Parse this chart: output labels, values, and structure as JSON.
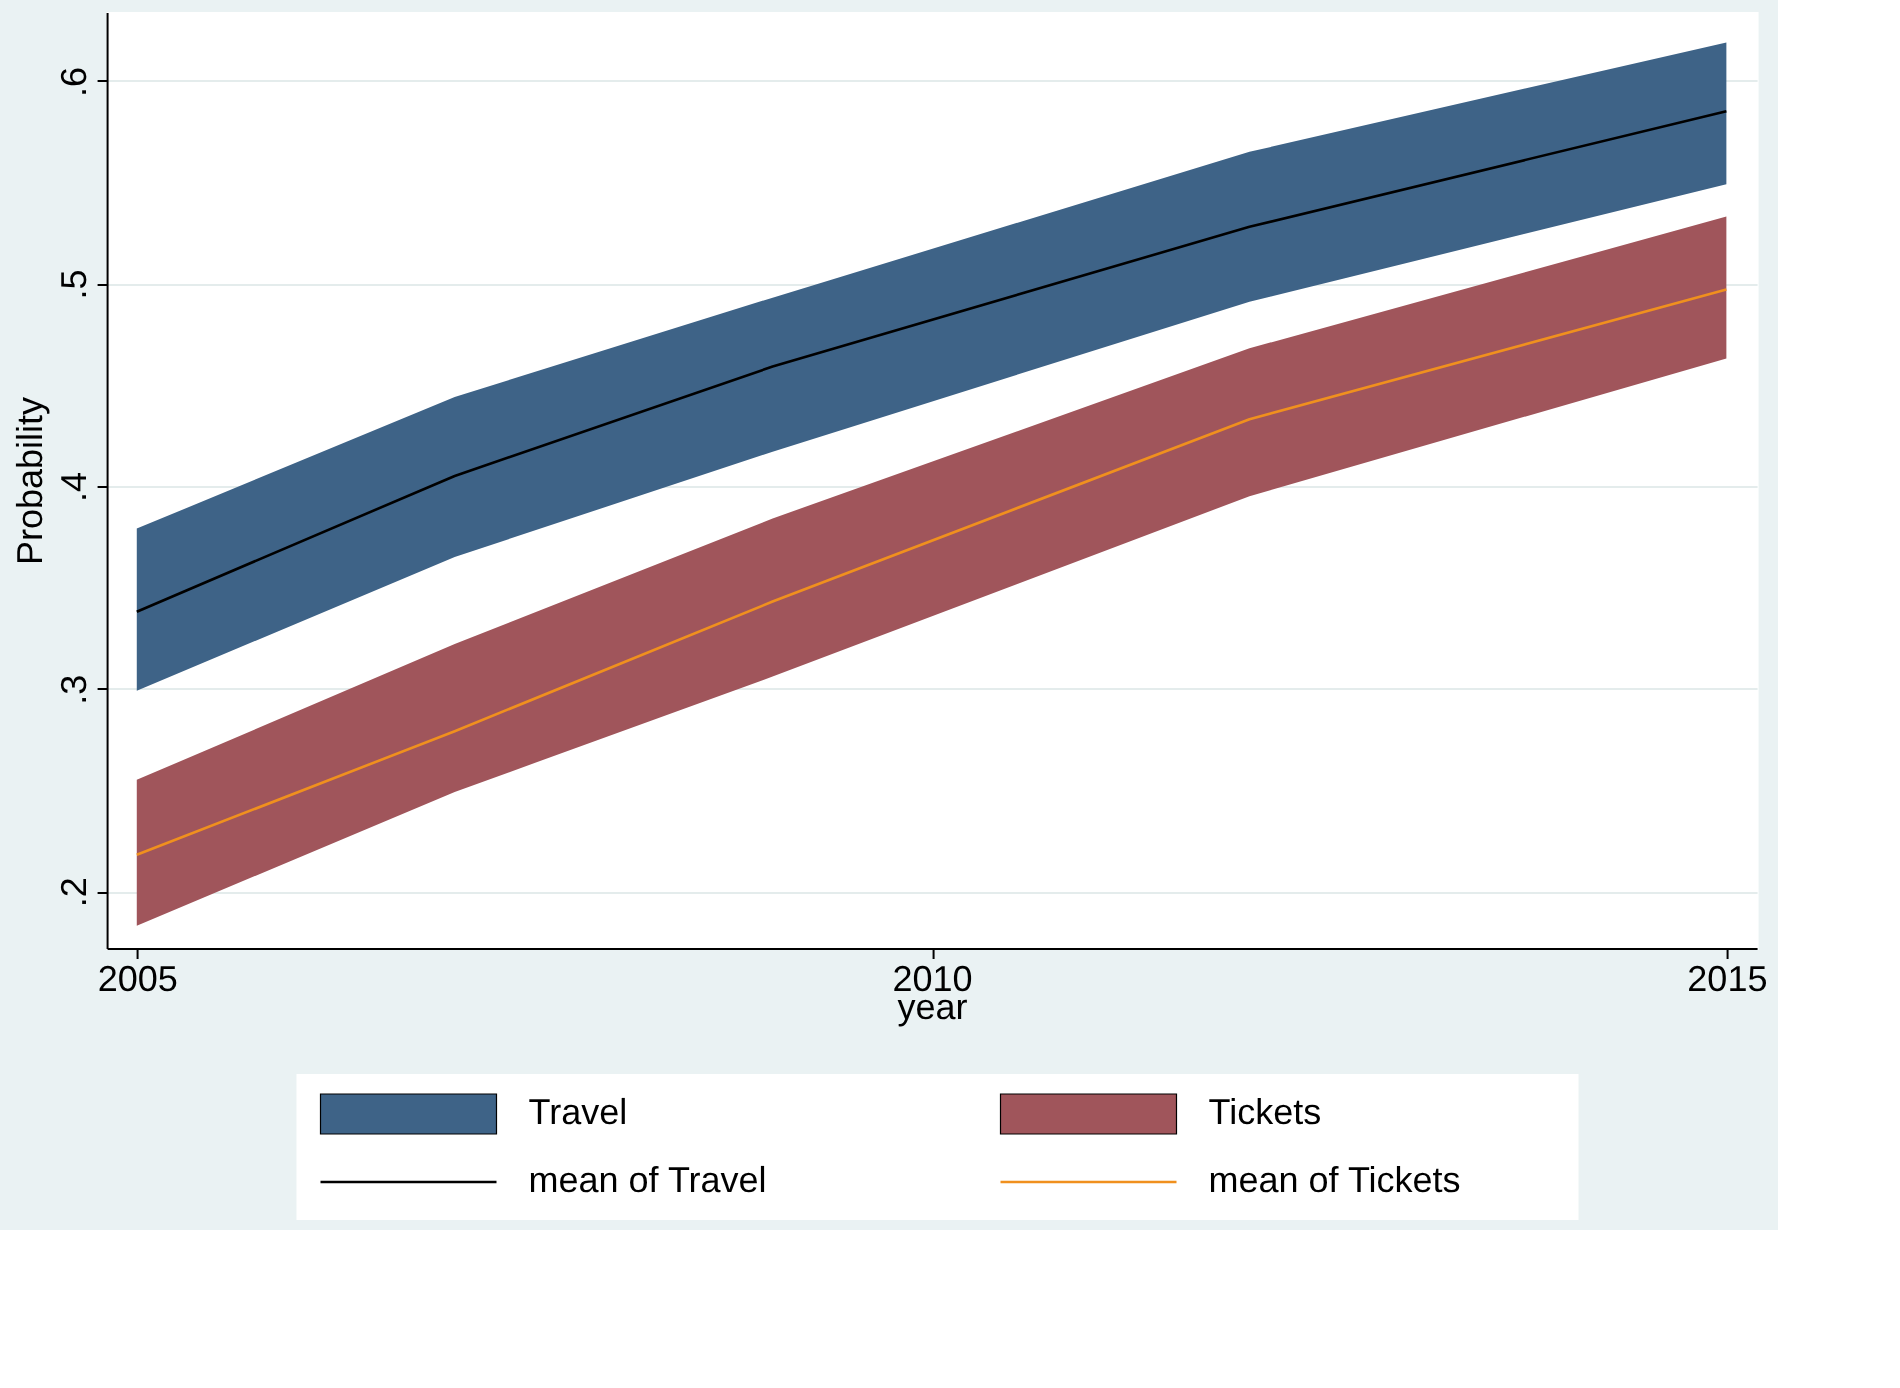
{
  "chart_data": {
    "type": "line",
    "xlabel": "year",
    "ylabel": "Probability",
    "x": [
      2005,
      2007,
      2009,
      2012,
      2015
    ],
    "series": [
      {
        "name": "Travel",
        "type": "area",
        "color": "#3e6387",
        "values": [
          null,
          null,
          null,
          null,
          null
        ],
        "lower": [
          0.299,
          0.365,
          0.417,
          0.491,
          0.549
        ],
        "upper": [
          0.379,
          0.444,
          0.493,
          0.565,
          0.619
        ]
      },
      {
        "name": "Tickets",
        "type": "area",
        "color": "#a0555b",
        "values": [
          null,
          null,
          null,
          null,
          null
        ],
        "lower": [
          0.183,
          0.249,
          0.306,
          0.395,
          0.463
        ],
        "upper": [
          0.255,
          0.322,
          0.384,
          0.468,
          0.533
        ]
      },
      {
        "name": "mean of Travel",
        "color": "#000000",
        "values": [
          0.338,
          0.405,
          0.459,
          0.528,
          0.585
        ]
      },
      {
        "name": "mean of Tickets",
        "color": "#f0901e",
        "values": [
          0.218,
          0.279,
          0.343,
          0.433,
          0.497
        ]
      }
    ],
    "xlim": [
      2004.81,
      2015.19
    ],
    "xticks": [
      2005,
      2010,
      2015
    ],
    "ylim": [
      0.172,
      0.634
    ],
    "yticks": [
      {
        "value": 0.2,
        "label": ".2"
      },
      {
        "value": 0.3,
        "label": ".3"
      },
      {
        "value": 0.4,
        "label": ".4"
      },
      {
        "value": 0.5,
        "label": ".5"
      },
      {
        "value": 0.6,
        "label": ".6"
      }
    ],
    "grid": "y",
    "legend": "bottom"
  }
}
